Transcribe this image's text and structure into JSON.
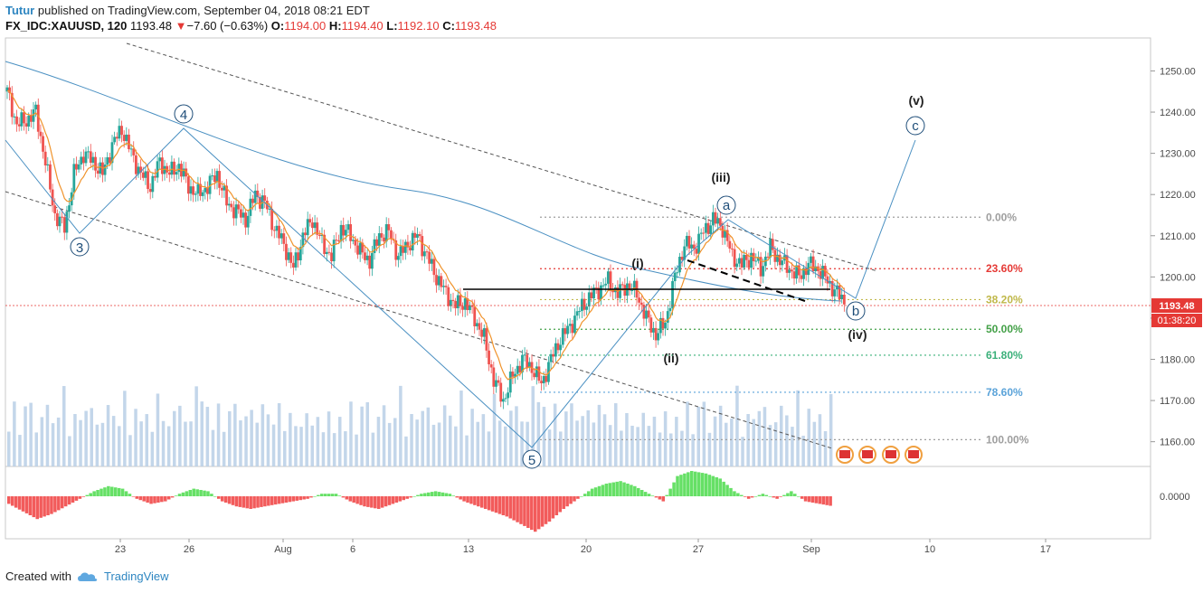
{
  "header": {
    "author": "Tutur",
    "published": "published on TradingView.com, September 04, 2018 08:21 EDT",
    "symbol": "FX_IDC:XAUUSD, 120",
    "last": "1193.48",
    "change_arrow": "▼",
    "change": "−7.60 (−0.63%)",
    "o_label": "O:",
    "o": "1194.00",
    "h_label": "H:",
    "h": "1194.40",
    "l_label": "L:",
    "l": "1192.10",
    "c_label": "C:",
    "c": "1193.48"
  },
  "footer": {
    "created_with": "Created with",
    "brand": "TradingView"
  },
  "colors": {
    "up": "#26a69a",
    "down": "#ef5350",
    "ema": "#f0932b",
    "ma": "#4a90c2",
    "volume": "#b9cfe6",
    "hist_pos": "#66e066",
    "hist_neg": "#f25b5b"
  },
  "price_tag": {
    "value": "1193.48",
    "countdown": "01:38:20",
    "color": "#e53935"
  },
  "chart_data": {
    "type": "candlestick",
    "x_ticks": [
      "23",
      "26",
      "Aug",
      "6",
      "13",
      "20",
      "27",
      "Sep",
      "10",
      "17"
    ],
    "y_ticks": [
      "1160.00",
      "1170.00",
      "1180.00",
      "1190.00",
      "1200.00",
      "1210.00",
      "1220.00",
      "1230.00",
      "1240.00",
      "1250.00"
    ],
    "ylim": [
      1154,
      1258
    ],
    "fib_levels": [
      {
        "label": "0.00%",
        "price": 1214.5,
        "color": "#9e9e9e"
      },
      {
        "label": "23.60%",
        "price": 1202.0,
        "color": "#e53935"
      },
      {
        "label": "38.20%",
        "price": 1194.5,
        "color": "#c0b84a"
      },
      {
        "label": "50.00%",
        "price": 1187.3,
        "color": "#43a047"
      },
      {
        "label": "61.80%",
        "price": 1181.0,
        "color": "#3bb07a"
      },
      {
        "label": "78.60%",
        "price": 1172.0,
        "color": "#5ba3d9"
      },
      {
        "label": "100.00%",
        "price": 1160.5,
        "color": "#9e9e9e"
      }
    ],
    "wave_labels": [
      {
        "text": "(v)"
      },
      {
        "text": "(iii)"
      },
      {
        "text": "(i)"
      },
      {
        "text": "(ii)"
      },
      {
        "text": "(iv)"
      }
    ],
    "circled_labels": [
      {
        "text": "3"
      },
      {
        "text": "4"
      },
      {
        "text": "5"
      },
      {
        "text": "a"
      },
      {
        "text": "b"
      },
      {
        "text": "c"
      }
    ],
    "close_path": [
      1245,
      1237,
      1238,
      1240,
      1228,
      1215,
      1212,
      1225,
      1230,
      1228,
      1225,
      1232,
      1236,
      1230,
      1225,
      1222,
      1228,
      1225,
      1227,
      1222,
      1220,
      1222,
      1225,
      1218,
      1216,
      1214,
      1220,
      1218,
      1212,
      1208,
      1202,
      1210,
      1214,
      1208,
      1205,
      1212,
      1210,
      1206,
      1204,
      1210,
      1211,
      1205,
      1208,
      1210,
      1205,
      1200,
      1196,
      1193,
      1194,
      1190,
      1185,
      1175,
      1170,
      1176,
      1180,
      1178,
      1174,
      1180,
      1185,
      1188,
      1192,
      1195,
      1197,
      1199,
      1196,
      1198,
      1196,
      1190,
      1186,
      1189,
      1200,
      1208,
      1207,
      1211,
      1214,
      1212,
      1205,
      1203,
      1205,
      1202,
      1207,
      1204,
      1202,
      1200,
      1203,
      1202,
      1199,
      1196,
      1193.5
    ],
    "macd_hist": [
      -0.3,
      -0.6,
      -0.9,
      -0.7,
      -0.4,
      -0.1,
      0.2,
      0.4,
      0.3,
      -0.1,
      -0.3,
      -0.2,
      0.1,
      0.3,
      0.2,
      -0.2,
      -0.4,
      -0.5,
      -0.4,
      -0.3,
      -0.2,
      -0.1,
      0.1,
      0.1,
      -0.2,
      -0.4,
      -0.5,
      -0.3,
      -0.1,
      0.1,
      0.2,
      0.1,
      -0.2,
      -0.4,
      -0.6,
      -0.8,
      -1.1,
      -1.4,
      -1.0,
      -0.5,
      -0.1,
      0.3,
      0.5,
      0.6,
      0.4,
      0.1,
      -0.2,
      0.8,
      1.0,
      0.9,
      0.7,
      0.2,
      -0.1,
      0.1,
      -0.1,
      0.2,
      -0.2,
      -0.3,
      -0.4
    ],
    "volume": [
      0.55,
      0.72,
      0.45,
      0.68,
      0.83,
      0.4,
      0.6,
      0.77,
      0.5,
      0.66,
      0.9,
      0.45,
      0.58,
      0.7,
      0.62,
      0.8,
      0.48,
      0.55,
      0.74,
      0.6,
      0.52,
      0.86,
      0.44,
      0.64,
      0.7,
      0.58,
      0.5,
      0.82,
      0.6,
      0.47,
      0.68,
      0.75,
      0.52,
      0.6,
      0.9,
      0.95,
      0.66,
      0.56,
      0.7,
      0.48,
      0.63,
      0.8,
      0.55,
      0.6,
      0.72,
      0.5,
      0.86,
      0.58,
      0.64,
      0.7,
      0.52,
      0.6,
      0.54,
      0.46,
      0.66,
      0.5,
      0.58,
      0.45,
      0.62,
      0.48,
      0.55
    ]
  }
}
